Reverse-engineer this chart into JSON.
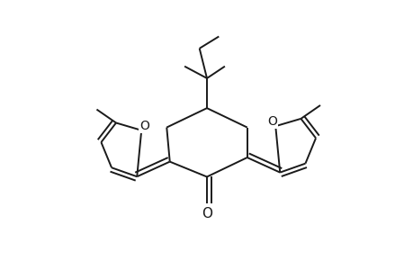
{
  "background_color": "#ffffff",
  "line_color": "#1a1a1a",
  "lw": 1.4,
  "figsize": [
    4.6,
    3.0
  ],
  "dpi": 100,
  "xlim": [
    -1.1,
    1.1
  ],
  "ylim": [
    -0.85,
    0.95
  ]
}
